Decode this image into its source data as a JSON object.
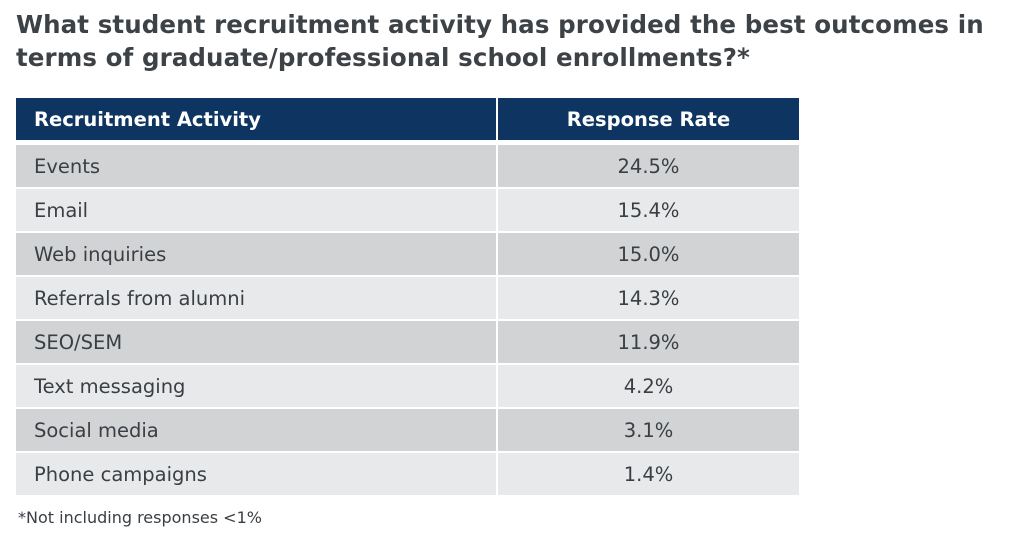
{
  "title": "What student recruitment activity has provided the best outcomes in terms of graduate/professional school enrollments?*",
  "footnote": "*Not including responses <1%",
  "colors": {
    "header_bg": "#0e3561",
    "header_text": "#ffffff",
    "row_dark": "#d1d3d5",
    "row_light": "#e8e9ea",
    "text": "#3a3f44"
  },
  "chart_data": {
    "type": "table",
    "title": "What student recruitment activity has provided the best outcomes in terms of graduate/professional school enrollments?*",
    "columns": [
      "Recruitment Activity",
      "Response Rate"
    ],
    "rows": [
      {
        "activity": "Events",
        "rate": "24.5%",
        "value": 24.5
      },
      {
        "activity": "Email",
        "rate": "15.4%",
        "value": 15.4
      },
      {
        "activity": "Web inquiries",
        "rate": "15.0%",
        "value": 15.0
      },
      {
        "activity": "Referrals from alumni",
        "rate": "14.3%",
        "value": 14.3
      },
      {
        "activity": "SEO/SEM",
        "rate": "11.9%",
        "value": 11.9
      },
      {
        "activity": "Text messaging",
        "rate": "4.2%",
        "value": 4.2
      },
      {
        "activity": "Social media",
        "rate": "3.1%",
        "value": 3.1
      },
      {
        "activity": "Phone campaigns",
        "rate": "1.4%",
        "value": 1.4
      }
    ],
    "footnote": "*Not including responses <1%"
  }
}
